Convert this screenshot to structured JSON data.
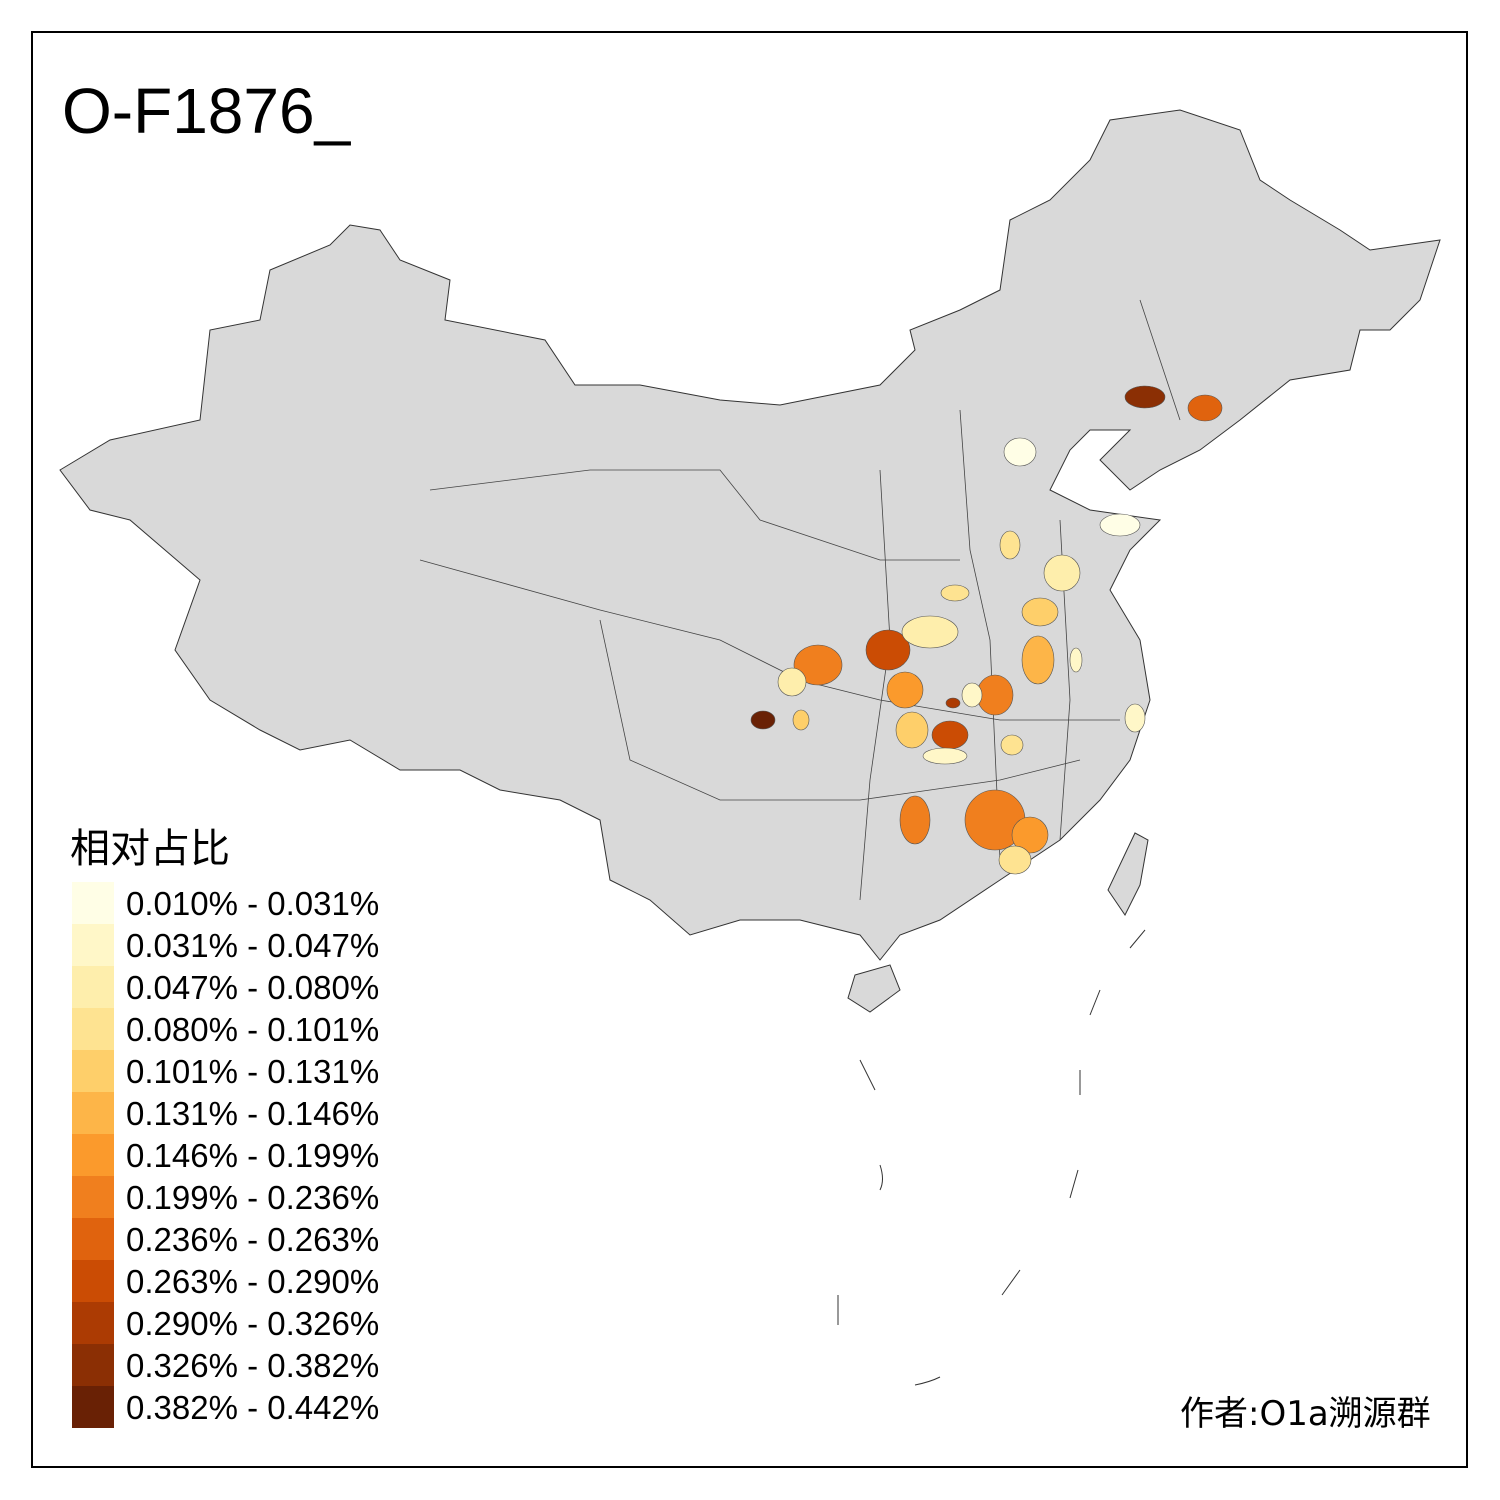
{
  "title": "O-F1876_",
  "legend": {
    "title": "相对占比",
    "items": [
      {
        "label": "0.010% - 0.031%",
        "color": "#fffee6"
      },
      {
        "label": "0.031% - 0.047%",
        "color": "#fff7c8"
      },
      {
        "label": "0.047% - 0.080%",
        "color": "#feeeac"
      },
      {
        "label": "0.080% - 0.101%",
        "color": "#fee391"
      },
      {
        "label": "0.101% - 0.131%",
        "color": "#fecf6a"
      },
      {
        "label": "0.131% - 0.146%",
        "color": "#fdb548"
      },
      {
        "label": "0.146% - 0.199%",
        "color": "#fb9a2c"
      },
      {
        "label": "0.199% - 0.236%",
        "color": "#f07f1e"
      },
      {
        "label": "0.236% - 0.263%",
        "color": "#e0630e"
      },
      {
        "label": "0.263% - 0.290%",
        "color": "#cb4c04"
      },
      {
        "label": "0.290% - 0.326%",
        "color": "#ac3b03"
      },
      {
        "label": "0.326% - 0.382%",
        "color": "#8b2f04"
      },
      {
        "label": "0.382% - 0.442%",
        "color": "#692105"
      }
    ]
  },
  "credit": "作者:O1a溯源群",
  "base_color": "#d9d9d9"
}
